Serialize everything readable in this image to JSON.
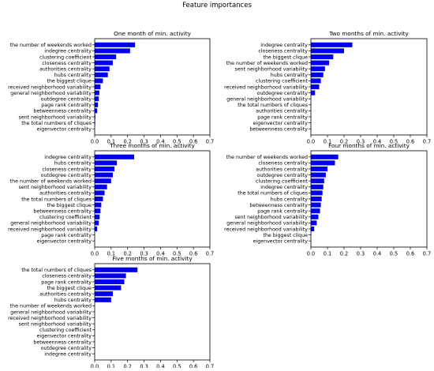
{
  "figure_title": "Feature importances",
  "colors": {
    "bar": "#0000ee",
    "axis": "#000000",
    "background": "#ffffff"
  },
  "chart_data": [
    {
      "type": "bar",
      "orientation": "horizontal",
      "title": "One month of min. activity",
      "categories": [
        "the number of weekends worked",
        "indegree centrality",
        "clustering coefficient",
        "closeness centrality",
        "authorities centrality",
        "hubs centrality",
        "the biggest clique",
        "received neighborhood variability",
        "general neighborhood variability",
        "outdegree centrality",
        "page rank centrality",
        "betweenness centrality",
        "sent neighborhood variability",
        "the total numbers of cliques",
        "eigenvector centrality"
      ],
      "values": [
        0.245,
        0.215,
        0.13,
        0.11,
        0.09,
        0.08,
        0.05,
        0.035,
        0.028,
        0.025,
        0.02,
        0.015,
        0.004,
        0.003,
        0.0
      ],
      "xlim": [
        0,
        0.7
      ],
      "xticks": [
        "0.0",
        "0.1",
        "0.2",
        "0.3",
        "0.4",
        "0.5",
        "0.6",
        "0.7"
      ]
    },
    {
      "type": "bar",
      "orientation": "horizontal",
      "title": "Two months of min. activity",
      "categories": [
        "indegree centrality",
        "closeness centrality",
        "the biggest clique",
        "the number of weekends worked",
        "sent neighborhood variability",
        "hubs centrality",
        "clustering coefficient",
        "received neighborhood variability",
        "outdegree centrality",
        "general neighborhood variability",
        "the total numbers of cliques",
        "authorities centrality",
        "page rank centrality",
        "eigenvector centrality",
        "betweenness centrality"
      ],
      "values": [
        0.25,
        0.2,
        0.135,
        0.11,
        0.085,
        0.075,
        0.06,
        0.05,
        0.025,
        0.0,
        0.0,
        0.0,
        0.0,
        0.0,
        0.0
      ],
      "xlim": [
        0,
        0.7
      ],
      "xticks": [
        "0.0",
        "0.1",
        "0.2",
        "0.3",
        "0.4",
        "0.5",
        "0.6",
        "0.7"
      ]
    },
    {
      "type": "bar",
      "orientation": "horizontal",
      "title": "Three months of min. activity",
      "categories": [
        "indegree centrality",
        "hubs centrality",
        "closeness centrality",
        "outdegree centrality",
        "the number of weekends worked",
        "sent neighborhood variability",
        "authorities centrality",
        "the total numbers of cliques",
        "the biggest clique",
        "betweenness centrality",
        "clustering coefficient",
        "general neighborhood variability",
        "received neighborhood variability",
        "page rank centrality",
        "eigenvector centrality"
      ],
      "values": [
        0.24,
        0.135,
        0.12,
        0.11,
        0.1,
        0.075,
        0.06,
        0.05,
        0.04,
        0.035,
        0.03,
        0.025,
        0.015,
        0.0,
        0.0
      ],
      "xlim": [
        0,
        0.7
      ],
      "xticks": [
        "0.0",
        "0.1",
        "0.2",
        "0.3",
        "0.4",
        "0.5",
        "0.6",
        "0.7"
      ]
    },
    {
      "type": "bar",
      "orientation": "horizontal",
      "title": "Four months of min. activity",
      "categories": [
        "the number of weekends worked",
        "closeness centrality",
        "authorities centrality",
        "outdegree centrality",
        "clustering coefficient",
        "indegree centrality",
        "the total numbers of cliques",
        "hubs centrality",
        "betweenness centrality",
        "page rank centrality",
        "sent neighborhood variability",
        "general neighborhood variability",
        "received neighborhood variability",
        "the biggest clique",
        "eigenvector centrality"
      ],
      "values": [
        0.165,
        0.145,
        0.1,
        0.09,
        0.08,
        0.075,
        0.07,
        0.065,
        0.06,
        0.055,
        0.045,
        0.035,
        0.02,
        0.0,
        0.0
      ],
      "xlim": [
        0,
        0.7
      ],
      "xticks": [
        "0.0",
        "0.1",
        "0.2",
        "0.3",
        "0.4",
        "0.5",
        "0.6",
        "0.7"
      ]
    },
    {
      "type": "bar",
      "orientation": "horizontal",
      "title": "Five months of min. activity",
      "categories": [
        "the total numbers of cliques",
        "closeness centrality",
        "page rank centrality",
        "the biggest clique",
        "authorities centrality",
        "hubs centrality",
        "the number of weekends worked",
        "general neighborhood variability",
        "received neighborhood variability",
        "sent neighborhood variability",
        "clustering coefficient",
        "eigenvector centrality",
        "betweenness centrality",
        "outdegree centrality",
        "indegree centrality"
      ],
      "values": [
        0.26,
        0.19,
        0.18,
        0.16,
        0.11,
        0.1,
        0.0,
        0.0,
        0.0,
        0.0,
        0.0,
        0.0,
        0.0,
        0.0,
        0.0
      ],
      "xlim": [
        0,
        0.7
      ],
      "xticks": [
        "0.0",
        "0.1",
        "0.2",
        "0.3",
        "0.4",
        "0.5",
        "0.6",
        "0.7"
      ]
    }
  ]
}
